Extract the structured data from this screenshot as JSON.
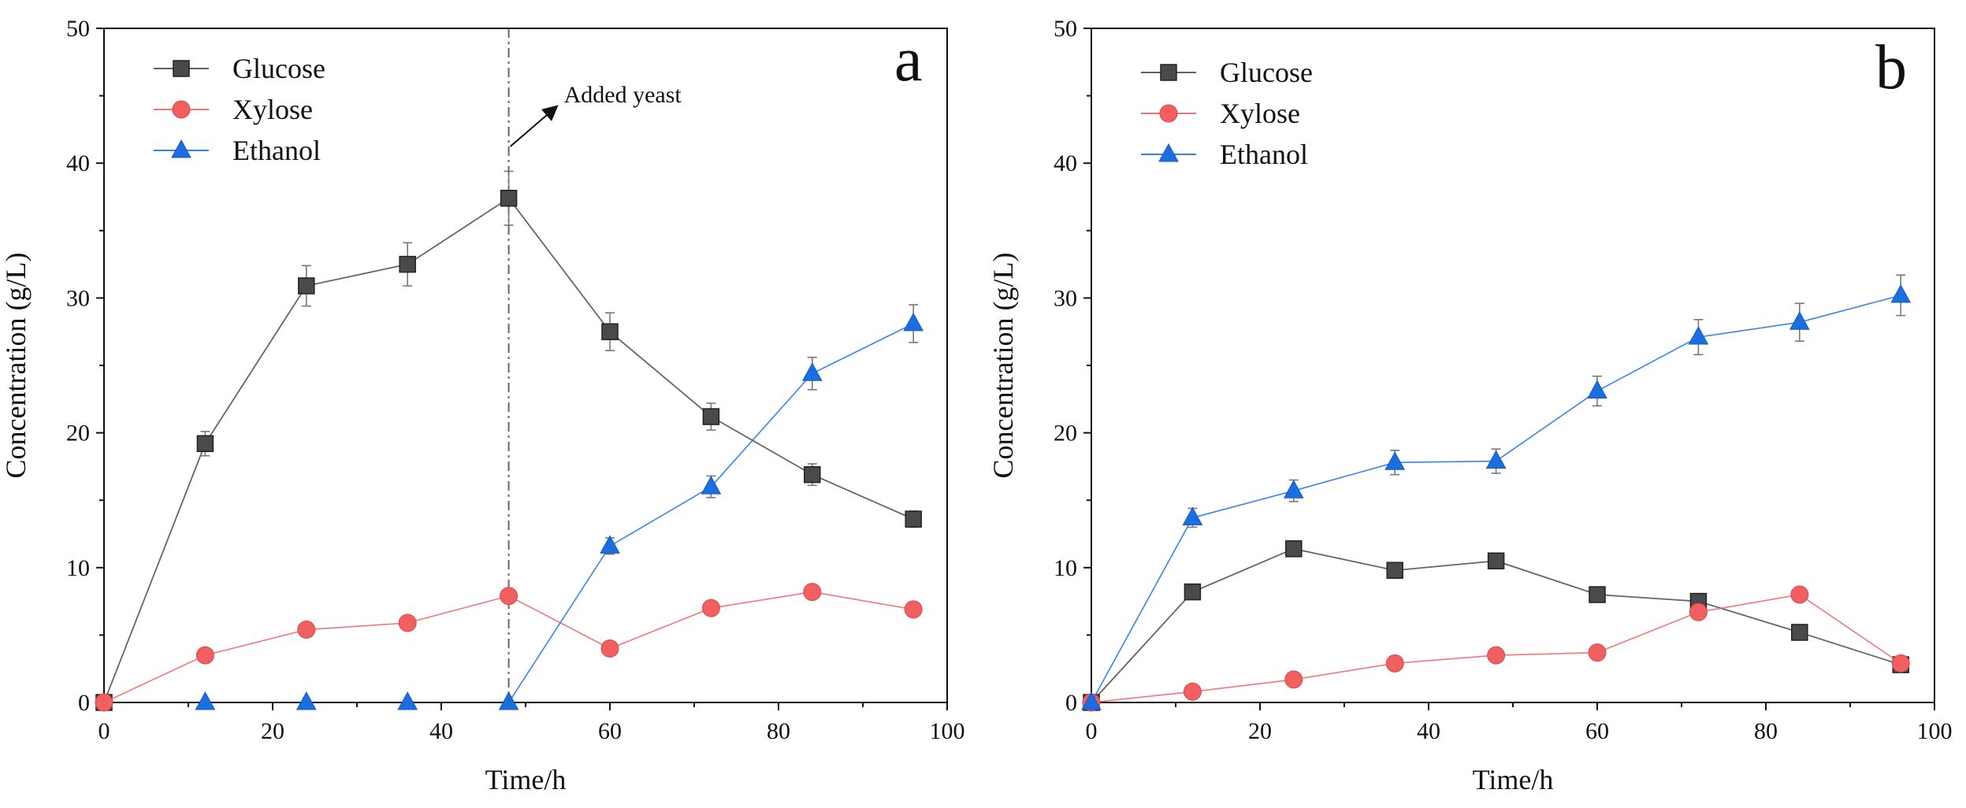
{
  "chart_data": [
    {
      "type": "line",
      "panel_label": "a",
      "xlabel": "Time/h",
      "ylabel": "Concentration (g/L)",
      "xlim": [
        0,
        100
      ],
      "ylim": [
        0,
        50
      ],
      "xticks": [
        0,
        20,
        40,
        60,
        80,
        100
      ],
      "yticks": [
        0,
        10,
        20,
        30,
        40,
        50
      ],
      "legend_position": "top-left",
      "annotation": {
        "text": "Added yeast",
        "x": 48
      },
      "series": [
        {
          "name": "Glucose",
          "color": "#4a4a4a",
          "marker": "square",
          "x": [
            0,
            12,
            24,
            36,
            48,
            60,
            72,
            84,
            96
          ],
          "y": [
            0,
            19.2,
            30.9,
            32.5,
            37.4,
            27.5,
            21.2,
            16.9,
            13.6
          ],
          "err": [
            0,
            0.9,
            1.5,
            1.6,
            2.0,
            1.4,
            1.0,
            0.8,
            0.6
          ]
        },
        {
          "name": "Xylose",
          "color": "#f06060",
          "marker": "circle",
          "x": [
            0,
            12,
            24,
            36,
            48,
            60,
            72,
            84,
            96
          ],
          "y": [
            0,
            3.5,
            5.4,
            5.9,
            7.9,
            4.0,
            7.0,
            8.2,
            6.9
          ],
          "err": [
            0,
            0,
            0,
            0,
            0,
            0,
            0,
            0,
            0
          ]
        },
        {
          "name": "Ethanol",
          "color": "#1a6ee0",
          "marker": "triangle",
          "x": [
            12,
            24,
            36,
            48,
            60,
            72,
            84,
            96
          ],
          "y": [
            0,
            0,
            0,
            0,
            11.6,
            16.0,
            24.4,
            28.1
          ],
          "err": [
            0,
            0,
            0,
            0,
            0.6,
            0.8,
            1.2,
            1.4
          ],
          "line_from_index": 3
        }
      ]
    },
    {
      "type": "line",
      "panel_label": "b",
      "xlabel": "Time/h",
      "ylabel": "Concentration (g/L)",
      "xlim": [
        0,
        100
      ],
      "ylim": [
        0,
        50
      ],
      "xticks": [
        0,
        20,
        40,
        60,
        80,
        100
      ],
      "yticks": [
        0,
        10,
        20,
        30,
        40,
        50
      ],
      "legend_position": "top-left",
      "series": [
        {
          "name": "Glucose",
          "color": "#4a4a4a",
          "marker": "square",
          "x": [
            0,
            12,
            24,
            36,
            48,
            60,
            72,
            84,
            96
          ],
          "y": [
            0,
            8.2,
            11.4,
            9.8,
            10.5,
            8.0,
            7.5,
            5.2,
            2.8
          ],
          "err": [
            0,
            0,
            0,
            0,
            0,
            0,
            0,
            0,
            0
          ]
        },
        {
          "name": "Xylose",
          "color": "#f06060",
          "marker": "circle",
          "x": [
            0,
            12,
            24,
            36,
            48,
            60,
            72,
            84,
            96
          ],
          "y": [
            0,
            0.8,
            1.7,
            2.9,
            3.5,
            3.7,
            6.7,
            8.0,
            2.9
          ],
          "err": [
            0,
            0,
            0,
            0,
            0,
            0,
            0,
            0,
            0
          ]
        },
        {
          "name": "Ethanol",
          "color": "#1a6ee0",
          "marker": "triangle",
          "x": [
            0,
            12,
            24,
            36,
            48,
            60,
            72,
            84,
            96
          ],
          "y": [
            0,
            13.7,
            15.7,
            17.8,
            17.9,
            23.1,
            27.1,
            28.2,
            30.2
          ],
          "err": [
            0,
            0.7,
            0.8,
            0.9,
            0.9,
            1.1,
            1.3,
            1.4,
            1.5
          ]
        }
      ]
    }
  ]
}
